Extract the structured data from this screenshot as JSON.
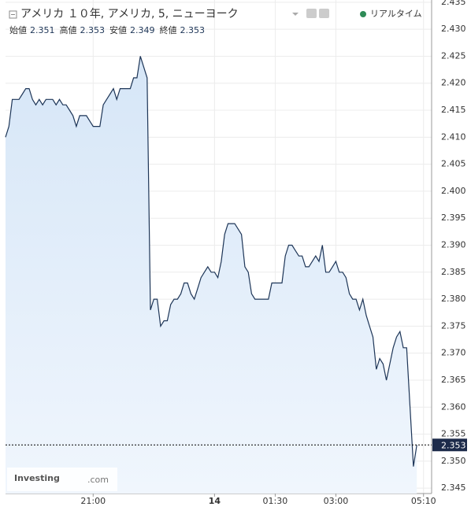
{
  "title": "アメリカ １０年, アメリカ, 5, ニューヨーク",
  "realtime": "リアルタイム",
  "ohlc": [
    {
      "label": "始値",
      "value": 2.351
    },
    {
      "label": "高値",
      "value": 2.353
    },
    {
      "label": "安値",
      "value": 2.349
    },
    {
      "label": "終値",
      "value": 2.353
    }
  ],
  "watermark": {
    "brand": "Investing",
    "domain": ".com"
  },
  "chart_data": {
    "type": "area",
    "color": "#1d3557",
    "grid": true,
    "xlim": [
      0,
      126.4
    ],
    "ylim": [
      2.344,
      2.436
    ],
    "xticks": [
      {
        "value": 26,
        "label": "21:00"
      },
      {
        "value": 62,
        "label": "14"
      },
      {
        "value": 80,
        "label": "01:30"
      },
      {
        "value": 98,
        "label": "03:00"
      },
      {
        "value": 124,
        "label": "05:10"
      }
    ],
    "yticks": [
      2.345,
      {
        "value": 2.35,
        "label": "2.350"
      },
      2.355,
      {
        "value": 2.36,
        "label": "2.360"
      },
      2.365,
      {
        "value": 2.37,
        "label": "2.370"
      },
      2.375,
      {
        "value": 2.38,
        "label": "2.380"
      },
      2.385,
      {
        "value": 2.39,
        "label": "2.390"
      },
      2.395,
      {
        "value": 2.4,
        "label": "2.400"
      },
      2.405,
      {
        "value": 2.41,
        "label": "2.410"
      },
      2.415,
      {
        "value": 2.42,
        "label": "2.420"
      },
      2.425,
      {
        "value": 2.43,
        "label": "2.430"
      },
      2.435
    ],
    "last": 2.353,
    "values": [
      2.41,
      2.412,
      2.417,
      2.417,
      2.417,
      2.418,
      2.419,
      2.419,
      2.417,
      2.416,
      2.417,
      2.416,
      2.417,
      2.417,
      2.417,
      2.416,
      2.417,
      2.416,
      2.416,
      2.415,
      2.414,
      2.412,
      2.414,
      2.414,
      2.414,
      2.413,
      2.412,
      2.412,
      2.412,
      2.416,
      2.417,
      2.418,
      2.419,
      2.417,
      2.419,
      2.419,
      2.419,
      2.419,
      2.421,
      2.421,
      2.425,
      2.423,
      2.421,
      2.378,
      2.38,
      2.38,
      2.375,
      2.376,
      2.376,
      2.379,
      2.38,
      2.38,
      2.381,
      2.383,
      2.383,
      2.381,
      2.38,
      2.382,
      2.384,
      2.385,
      2.386,
      2.385,
      2.385,
      2.384,
      2.387,
      2.392,
      2.394,
      2.394,
      2.394,
      2.393,
      2.392,
      2.386,
      2.385,
      2.381,
      2.38,
      2.38,
      2.38,
      2.38,
      2.38,
      2.383,
      2.383,
      2.383,
      2.383,
      2.388,
      2.39,
      2.39,
      2.389,
      2.388,
      2.388,
      2.386,
      2.386,
      2.387,
      2.388,
      2.387,
      2.39,
      2.385,
      2.385,
      2.386,
      2.387,
      2.385,
      2.385,
      2.384,
      2.381,
      2.38,
      2.38,
      2.378,
      2.38,
      2.377,
      2.375,
      2.373,
      2.367,
      2.369,
      2.368,
      2.365,
      2.368,
      2.371,
      2.373,
      2.374,
      2.371,
      2.371,
      2.36,
      2.349,
      2.353
    ]
  }
}
